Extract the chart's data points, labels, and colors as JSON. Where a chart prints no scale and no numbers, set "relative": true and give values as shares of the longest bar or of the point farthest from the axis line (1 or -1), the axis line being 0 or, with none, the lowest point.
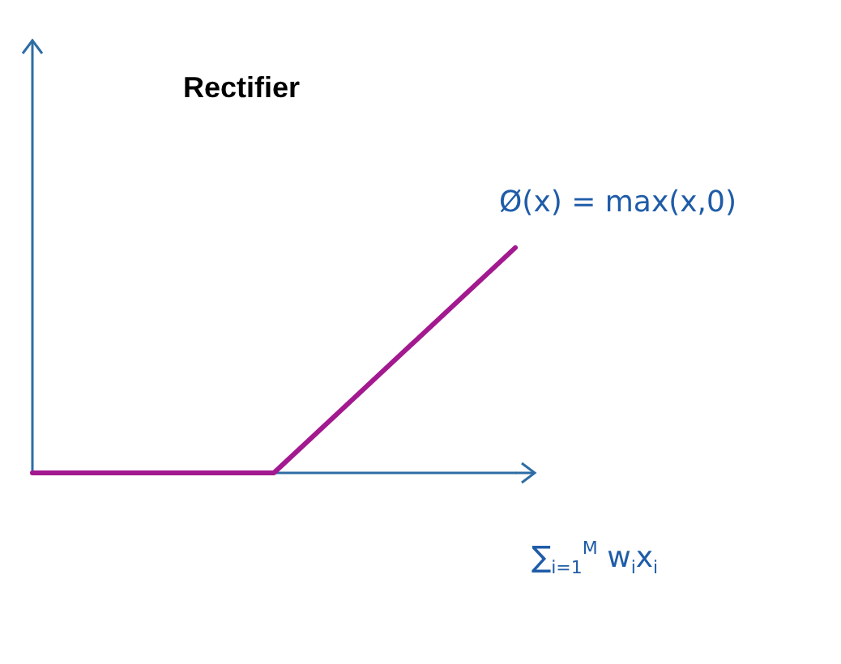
{
  "chart_data": {
    "type": "line",
    "title": "Rectifier",
    "xlabel": "∑$_{i=1}$$^{M}$ w$_{i}$x$_{i}$",
    "annotations": [
      "Ø(x) = max(x,0)"
    ],
    "categories": [
      null,
      null,
      null
    ],
    "relative": true,
    "series": [
      {
        "color": "#a3198f",
        "values": [
          0,
          0,
          1
        ]
      }
    ],
    "grid": false,
    "marker": "none",
    "line_style": "solid"
  }
}
